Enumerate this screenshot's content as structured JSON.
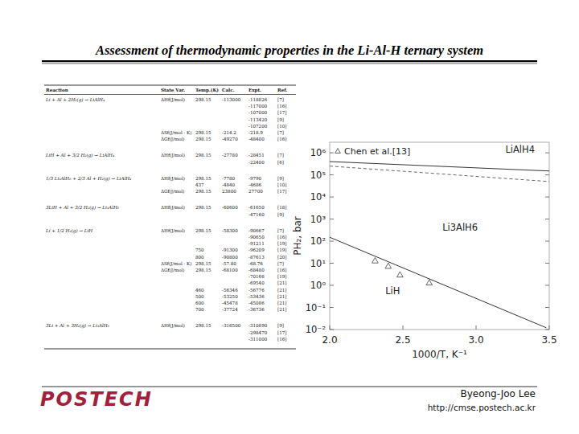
{
  "header": {
    "title": "Assessment of thermodynamic properties in the Li-Al-H ternary system"
  },
  "table": {
    "header": [
      "Reaction",
      "State Var.",
      "Temp.(K)",
      "Calc.",
      "Expt.",
      "Ref."
    ],
    "groups": [
      {
        "reaction": "Li + Al + 2H₂(g) → LiAlH₄",
        "lines": [
          [
            "ΔHf(J/mol)",
            "298.15",
            "-113000",
            "-118826",
            "[7]"
          ],
          [
            null,
            null,
            null,
            "-117000",
            "[16]"
          ],
          [
            null,
            null,
            null,
            "-107000",
            "[17]"
          ],
          [
            null,
            null,
            null,
            "-113420",
            "[9]"
          ],
          [
            null,
            null,
            null,
            "-107200",
            "[10]"
          ],
          [
            "ΔSf(J/mol · K)",
            "298.15",
            "-214.2",
            "-218.9",
            "[7]"
          ],
          [
            "ΔGf(J/mol)",
            "298.15",
            "-49270",
            "-48400",
            "[16]"
          ]
        ]
      },
      {
        "reaction": "LiH + Al + 3/2 H₂(g) → LiAlH₄",
        "lines": [
          [
            "ΔHf(J/mol)",
            "298.15",
            "-27780",
            "-28451",
            "[7]"
          ],
          [
            null,
            null,
            null,
            "-22400",
            "[6]"
          ]
        ]
      },
      {
        "reaction": "1/3 Li₃AlH₆ + 2/3 Al + H₂(g) → LiAlH₄",
        "lines": [
          [
            "ΔHf(J/mol)",
            "298.15",
            "-7780",
            "-9790",
            "[9]"
          ],
          [
            null,
            "437",
            "-4840",
            "-4686",
            "[10]"
          ],
          [
            "ΔGf(J/mol)",
            "298.15",
            "23800",
            "27700",
            "[17]"
          ]
        ]
      },
      {
        "reaction": "3LiH + Al + 3/2 H₂(g) → Li₃AlH₆",
        "lines": [
          [
            "ΔHf(J/mol)",
            "298.15",
            "-60600",
            "-61650",
            "[18]"
          ],
          [
            null,
            null,
            null,
            "-47160",
            "[9]"
          ]
        ]
      },
      {
        "reaction": "Li + 1/2 H₂(g) → LiH",
        "lines": [
          [
            "ΔHf(J/mol)",
            "298.15",
            "-58300",
            "-90667",
            "[7]"
          ],
          [
            null,
            null,
            null,
            "-90650",
            "[16]"
          ],
          [
            null,
            null,
            null,
            "-91211",
            "[19]"
          ],
          [
            null,
            "750",
            "-91300",
            "-96209",
            "[19]"
          ],
          [
            null,
            "800",
            "-90800",
            "-87613",
            "[20]"
          ],
          [
            "ΔSf(J/mol · K)",
            "298.15",
            "-57.80",
            "-68.76",
            "[7]"
          ],
          [
            "ΔGf(J/mol)",
            "298.15",
            "-68100",
            "-68480",
            "[16]"
          ],
          [
            null,
            null,
            null,
            "-70166",
            "[19]"
          ],
          [
            null,
            null,
            null,
            "-69540",
            "[21]"
          ],
          [
            null,
            "460",
            "-56346",
            "-56776",
            "[21]"
          ],
          [
            null,
            "500",
            "-53250",
            "-53436",
            "[21]"
          ],
          [
            null,
            "600",
            "-45478",
            "-45086",
            "[21]"
          ],
          [
            null,
            "700",
            "-37724",
            "-36736",
            "[21]"
          ]
        ]
      },
      {
        "reaction": "3Li + Al + 3H₂(g) → Li₃AlH₆",
        "lines": [
          [
            "ΔHf(J/mol)",
            "298.15",
            "-316500",
            "-310890",
            "[9]"
          ],
          [
            null,
            null,
            null,
            "-298470",
            "[17]"
          ],
          [
            null,
            null,
            null,
            "-311000",
            "[16]"
          ]
        ]
      }
    ]
  },
  "chart_data": {
    "type": "line",
    "x_label": "1000/T, K⁻¹",
    "y_label": "PH₂, bar",
    "log": "y",
    "grid": false,
    "legend": "top-left",
    "xlim": [
      2.0,
      3.5
    ],
    "xticks": [
      {
        "value": 2,
        "label": "2.0"
      },
      {
        "value": 2.5,
        "label": "2.5"
      },
      {
        "value": 3,
        "label": "3.0"
      },
      {
        "value": 3.5,
        "label": "3.5"
      }
    ],
    "ylim": [
      0.01,
      3000000
    ],
    "yticks": [
      {
        "value": 0.01,
        "label": "10⁻²"
      },
      {
        "value": 0.1,
        "label": "10⁻¹"
      },
      {
        "value": 1,
        "label": "10⁰"
      },
      {
        "value": 10,
        "label": "10¹"
      },
      {
        "value": 100,
        "label": "10²"
      },
      {
        "value": 1000,
        "label": "10³"
      },
      {
        "value": 10000,
        "label": "10⁴"
      },
      {
        "value": 100000,
        "label": "10⁵"
      },
      {
        "value": 1000000,
        "label": "10⁶"
      }
    ],
    "series": [
      {
        "name": "Chen et al.[13]",
        "type": "scatter",
        "marker": "triangle",
        "color": "#555555",
        "x": [
          2.31,
          2.4,
          2.48,
          2.68
        ],
        "values": [
          13,
          7.4,
          3,
          1.3
        ]
      },
      {
        "type": "line",
        "line_style": "solid",
        "color": "#333333",
        "x": [
          2.0,
          3.5
        ],
        "values": [
          400000,
          150000
        ]
      },
      {
        "type": "line",
        "line_style": "dashed",
        "color": "#666666",
        "x": [
          2.0,
          3.5
        ],
        "values": [
          250000,
          50000
        ]
      },
      {
        "type": "line",
        "line_style": "solid",
        "color": "#333333",
        "x": [
          2.0,
          3.48
        ],
        "values": [
          150,
          0.012
        ]
      }
    ],
    "annotations": [
      {
        "text": "LiAlH4",
        "x": 3.2,
        "y": 1000000
      },
      {
        "text": "Li3AlH6",
        "x": 2.77,
        "y": 300
      },
      {
        "text": "LiH",
        "x": 2.38,
        "y": 0.4
      }
    ]
  },
  "footer": {
    "logo": "POSTECH",
    "author": "Byeong-Joo Lee",
    "url": "http://cmse.postech.ac.kr"
  }
}
